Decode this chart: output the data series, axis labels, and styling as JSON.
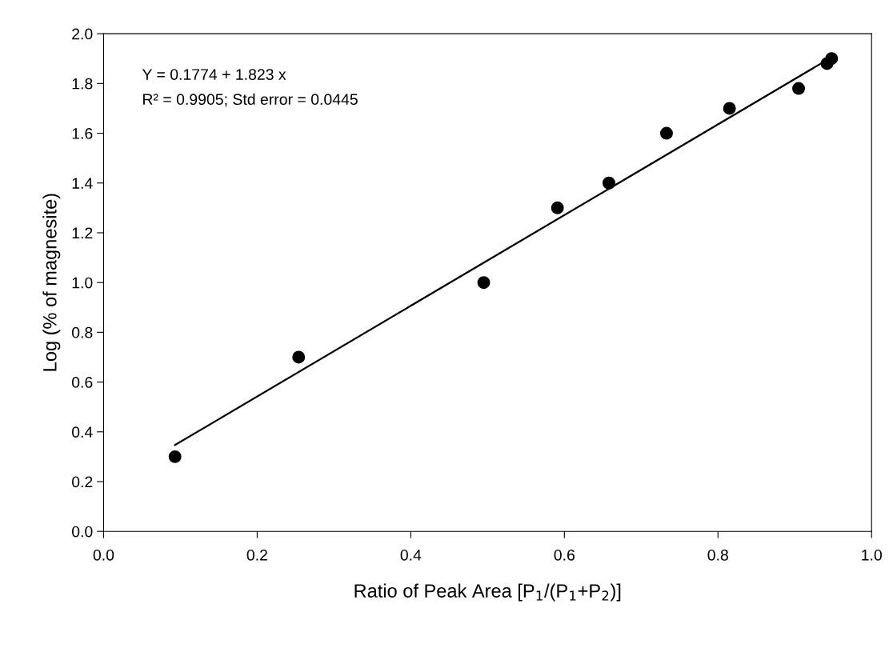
{
  "chart_data": {
    "type": "scatter",
    "xlabel": "Ratio of Peak Area [P$_{1}$/(P$_{1}$+P$_{2}$)]",
    "ylabel": "Log (% of magnesite)",
    "annotations": [
      "Y = 0.1774 + 1.823 x",
      "R² = 0.9905; Std error = 0.0445"
    ],
    "x": [
      0.093,
      0.254,
      0.495,
      0.591,
      0.658,
      0.733,
      0.815,
      0.905,
      0.942,
      0.948
    ],
    "series": [
      {
        "color": "#000000",
        "marker": "circle",
        "values": [
          0.3,
          0.7,
          1.0,
          1.3,
          1.4,
          1.6,
          1.7,
          1.78,
          1.88,
          1.9
        ]
      },
      {
        "type": "line",
        "color": "#000000",
        "line_style": "solid",
        "x": [
          0.093,
          0.95
        ],
        "values": [
          0.347,
          1.909
        ]
      }
    ],
    "xlim": [
      0,
      1.0
    ],
    "ylim": [
      0,
      2.0
    ],
    "xticks": [
      {
        "value": 0,
        "label": "0.0"
      },
      0.2,
      0.4,
      0.6,
      0.8,
      {
        "value": 1.0,
        "label": "1.0"
      }
    ],
    "yticks": [
      {
        "value": 0,
        "label": "0.0"
      },
      0.2,
      0.4,
      0.6,
      0.8,
      {
        "value": 1.0,
        "label": "1.0"
      },
      1.2,
      1.4,
      1.6,
      1.8,
      {
        "value": 2.0,
        "label": "2.0"
      }
    ],
    "grid": false,
    "legend": false
  }
}
